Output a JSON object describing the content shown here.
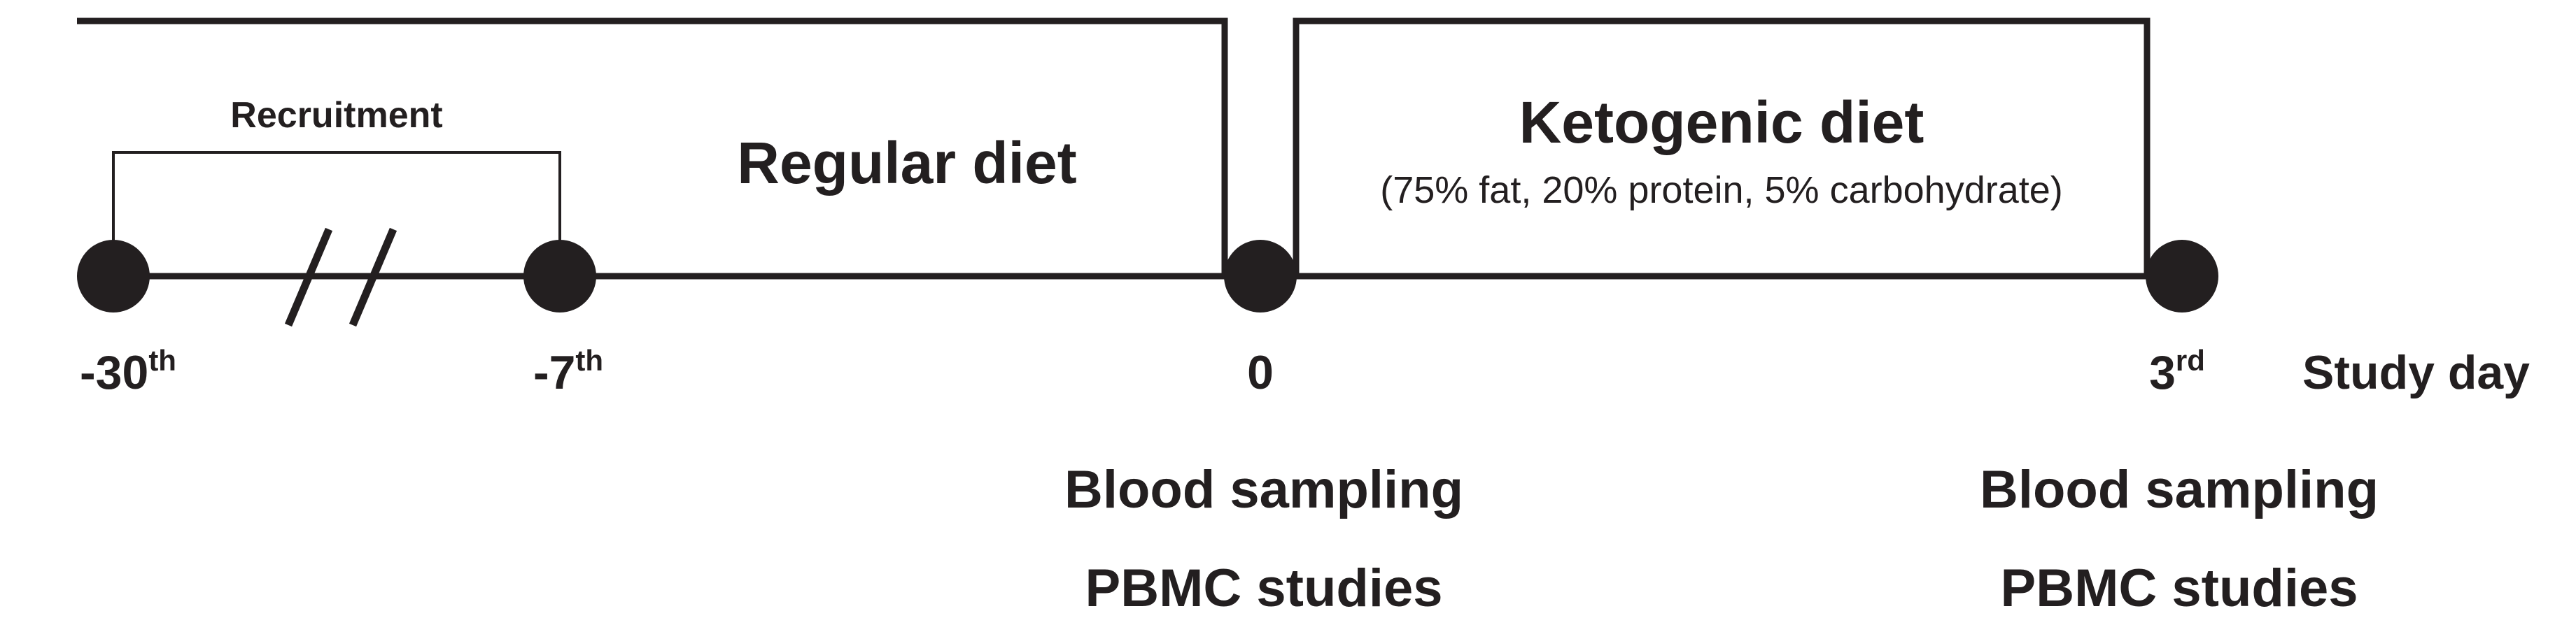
{
  "colors": {
    "ink": "#231f20",
    "background": "#ffffff"
  },
  "periods": {
    "regular": {
      "title": "Regular diet"
    },
    "ketogenic": {
      "title": "Ketogenic diet",
      "composition": "(75% fat, 20% protein, 5% carbohydrate)"
    }
  },
  "recruitment": {
    "label": "Recruitment"
  },
  "timepoints": [
    {
      "value": "-30",
      "suffix": "th"
    },
    {
      "value": "-7",
      "suffix": "th"
    },
    {
      "value": "0",
      "suffix": ""
    },
    {
      "value": "3",
      "suffix": "rd"
    }
  ],
  "axis_label": "Study day",
  "measurements": {
    "day0": {
      "line1": "Blood sampling",
      "line2": "PBMC studies"
    },
    "day3": {
      "line1": "Blood sampling",
      "line2": "PBMC studies"
    }
  }
}
